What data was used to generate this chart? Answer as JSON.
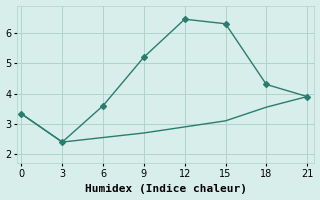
{
  "xlabel": "Humidex (Indice chaleur)",
  "line1_x": [
    0,
    3,
    6,
    9,
    12,
    15,
    18,
    21
  ],
  "line1_y": [
    3.33,
    2.4,
    3.6,
    5.2,
    6.45,
    6.3,
    4.3,
    3.9
  ],
  "line2_x": [
    0,
    3,
    6,
    9,
    12,
    15,
    18,
    21
  ],
  "line2_y": [
    3.33,
    2.4,
    2.55,
    2.7,
    2.9,
    3.1,
    3.55,
    3.9
  ],
  "line_color": "#2a7c6e",
  "marker": "D",
  "marker_size": 3,
  "bg_color": "#d8eeeb",
  "grid_color": "#aed4cc",
  "xticks": [
    0,
    3,
    6,
    9,
    12,
    15,
    18,
    21
  ],
  "yticks": [
    2,
    3,
    4,
    5,
    6
  ],
  "ylim": [
    1.7,
    6.9
  ],
  "xlim": [
    -0.3,
    21.5
  ],
  "tick_fontsize": 7,
  "label_fontsize": 8
}
